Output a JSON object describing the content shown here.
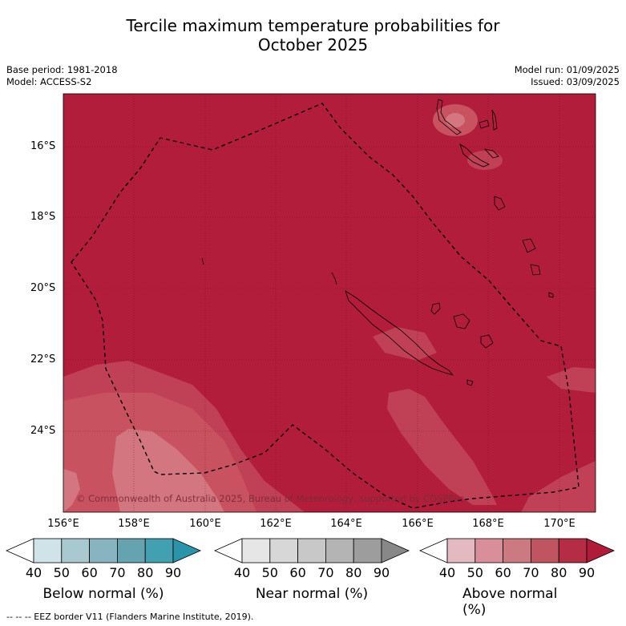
{
  "title_line1": "Tercile maximum temperature probabilities for",
  "title_line2": "October 2025",
  "base_period": "Base period: 1981-2018",
  "model": "Model: ACCESS-S2",
  "model_run": "Model run: 01/09/2025",
  "issued": "Issued: 03/09/2025",
  "copyright": "© Commonwealth of Australia 2025, Bureau of Meteorology, supported by COSPPac",
  "footer": "--  --  -- EEZ border V11 (Flanders Marine Institute, 2019).",
  "lat_labels": [
    "16°S",
    "18°S",
    "20°S",
    "22°S",
    "24°S"
  ],
  "lon_labels": [
    "156°E",
    "158°E",
    "160°E",
    "162°E",
    "164°E",
    "166°E",
    "168°E",
    "170°E"
  ],
  "colorbars": [
    {
      "title": "Below normal (%)",
      "ticks": [
        "40",
        "50",
        "60",
        "70",
        "80",
        "90"
      ],
      "colors": [
        "#ffffff",
        "#cfe3e8",
        "#a9c9d0",
        "#88b4bf",
        "#65a3b0",
        "#42a0b1",
        "#2a95a8"
      ]
    },
    {
      "title": "Near normal (%)",
      "ticks": [
        "40",
        "50",
        "60",
        "70",
        "80",
        "90"
      ],
      "colors": [
        "#ffffff",
        "#e6e6e6",
        "#d7d7d7",
        "#c8c8c8",
        "#b4b4b4",
        "#9d9d9d",
        "#888888"
      ]
    },
    {
      "title": "Above normal (%)",
      "ticks": [
        "40",
        "50",
        "60",
        "70",
        "80",
        "90"
      ],
      "colors": [
        "#ffffff",
        "#e4b9c0",
        "#d98f99",
        "#cc7a82",
        "#c05562",
        "#b52d45",
        "#b01b38"
      ]
    }
  ],
  "map_colors": {
    "above_80": "#b21d3c",
    "above_70": "#c04055",
    "above_60": "#c8525f",
    "above_50": "#d4767f"
  }
}
